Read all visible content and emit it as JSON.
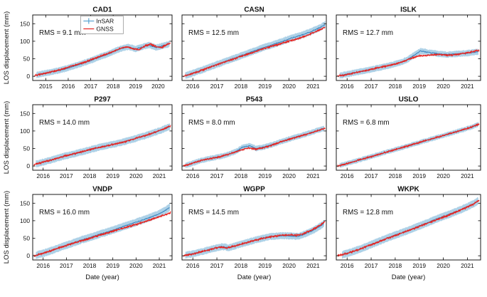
{
  "figure": {
    "ylabel": "LOS displacement (mm)",
    "xlabel": "Date (year)",
    "legend": {
      "insar": "InSAR",
      "gnss": "GNSS"
    },
    "legend_position": "top of first subplot",
    "grid": false,
    "colors": {
      "gnss": "#e8231f",
      "insar_band": "#5ba3d0",
      "insar_core": "#2173b5",
      "axis": "#000000"
    },
    "ylim": [
      -12,
      175
    ],
    "yticks": [
      0,
      50,
      100,
      150
    ]
  },
  "chart_data": [
    {
      "type": "line",
      "title": "CAD1",
      "rms_label": "RMS = 9.1 mm",
      "xlim": [
        2014.42,
        2020.62
      ],
      "xticks": [
        2015,
        2016,
        2017,
        2018,
        2019,
        2020
      ],
      "gnss": {
        "x": [
          2014.5,
          2014.8,
          2015.2,
          2015.6,
          2016.0,
          2016.4,
          2016.8,
          2017.2,
          2017.6,
          2018.0,
          2018.3,
          2018.6,
          2018.9,
          2019.15,
          2019.4,
          2019.65,
          2019.9,
          2020.15,
          2020.4,
          2020.55
        ],
        "y": [
          2,
          6,
          12,
          18,
          26,
          33,
          42,
          52,
          61,
          71,
          79,
          84,
          79,
          76,
          86,
          92,
          85,
          82,
          91,
          95
        ]
      },
      "insar": {
        "x": [
          2014.6,
          2015.0,
          2015.4,
          2015.8,
          2016.2,
          2016.6,
          2017.0,
          2017.4,
          2017.8,
          2018.1,
          2018.4,
          2018.7,
          2019.0,
          2019.3,
          2019.6,
          2019.9,
          2020.2,
          2020.5
        ],
        "y": [
          4,
          9,
          14,
          20,
          28,
          36,
          45,
          55,
          64,
          73,
          80,
          84,
          78,
          84,
          89,
          82,
          87,
          92
        ],
        "err": 8
      },
      "noise": 3.0
    },
    {
      "type": "line",
      "title": "CASN",
      "rms_label": "RMS = 12.5 mm",
      "xlim": [
        2015.55,
        2021.55
      ],
      "xticks": [
        2016,
        2017,
        2018,
        2019,
        2020,
        2021
      ],
      "gnss": {
        "x": [
          2015.6,
          2016.0,
          2016.4,
          2016.8,
          2017.2,
          2017.6,
          2018.0,
          2018.4,
          2018.8,
          2019.2,
          2019.6,
          2020.0,
          2020.4,
          2020.8,
          2021.2,
          2021.5
        ],
        "y": [
          0,
          8,
          18,
          28,
          38,
          47,
          57,
          66,
          76,
          84,
          92,
          100,
          108,
          118,
          130,
          140
        ]
      },
      "insar": {
        "x": [
          2015.7,
          2016.1,
          2016.5,
          2016.9,
          2017.3,
          2017.7,
          2018.1,
          2018.5,
          2018.9,
          2019.3,
          2019.7,
          2020.1,
          2020.5,
          2020.9,
          2021.25,
          2021.5
        ],
        "y": [
          2,
          11,
          21,
          31,
          41,
          51,
          61,
          71,
          81,
          90,
          99,
          109,
          117,
          127,
          138,
          147
        ],
        "err": 9
      },
      "noise": 3.2
    },
    {
      "type": "line",
      "title": "ISLK",
      "rms_label": "RMS = 12.7 mm",
      "xlim": [
        2015.55,
        2021.55
      ],
      "xticks": [
        2016,
        2017,
        2018,
        2019,
        2020,
        2021
      ],
      "gnss": {
        "x": [
          2015.6,
          2016.0,
          2016.4,
          2016.8,
          2017.2,
          2017.6,
          2018.0,
          2018.4,
          2018.7,
          2019.0,
          2019.4,
          2019.8,
          2020.2,
          2020.6,
          2021.0,
          2021.5
        ],
        "y": [
          0,
          5,
          11,
          17,
          23,
          29,
          35,
          44,
          52,
          58,
          60,
          62,
          60,
          63,
          67,
          74
        ]
      },
      "insar": {
        "x": [
          2015.7,
          2016.1,
          2016.5,
          2016.9,
          2017.3,
          2017.7,
          2018.1,
          2018.5,
          2018.8,
          2019.05,
          2019.4,
          2019.8,
          2020.2,
          2020.6,
          2021.0,
          2021.45
        ],
        "y": [
          2,
          7,
          13,
          18,
          24,
          30,
          37,
          47,
          61,
          72,
          68,
          64,
          62,
          64,
          66,
          70
        ],
        "err": 8
      },
      "noise": 3.0
    },
    {
      "type": "line",
      "title": "P297",
      "rms_label": "RMS = 14.0 mm",
      "xlim": [
        2015.55,
        2021.55
      ],
      "xticks": [
        2016,
        2017,
        2018,
        2019,
        2020,
        2021
      ],
      "gnss": {
        "x": [
          2015.6,
          2016.0,
          2016.4,
          2016.8,
          2017.2,
          2017.6,
          2018.0,
          2018.4,
          2018.8,
          2019.2,
          2019.6,
          2020.0,
          2020.4,
          2020.8,
          2021.2,
          2021.5
        ],
        "y": [
          4,
          11,
          18,
          26,
          33,
          40,
          47,
          53,
          58,
          64,
          71,
          79,
          87,
          96,
          106,
          115
        ]
      },
      "insar": {
        "x": [
          2015.7,
          2016.1,
          2016.5,
          2016.9,
          2017.3,
          2017.7,
          2018.1,
          2018.5,
          2018.9,
          2019.3,
          2019.7,
          2020.1,
          2020.5,
          2020.9,
          2021.25,
          2021.45
        ],
        "y": [
          6,
          13,
          20,
          28,
          34,
          41,
          48,
          55,
          60,
          66,
          73,
          81,
          89,
          98,
          107,
          112
        ],
        "err": 9
      },
      "noise": 3.1
    },
    {
      "type": "line",
      "title": "P543",
      "rms_label": "RMS = 8.0 mm",
      "xlim": [
        2015.55,
        2021.55
      ],
      "xticks": [
        2016,
        2017,
        2018,
        2019,
        2020,
        2021
      ],
      "gnss": {
        "x": [
          2015.6,
          2015.9,
          2016.2,
          2016.5,
          2016.8,
          2017.1,
          2017.4,
          2017.7,
          2018.0,
          2018.3,
          2018.6,
          2019.0,
          2019.3,
          2019.6,
          2020.0,
          2020.4,
          2020.8,
          2021.2,
          2021.5
        ],
        "y": [
          0,
          6,
          13,
          18,
          22,
          26,
          32,
          38,
          46,
          52,
          48,
          53,
          60,
          68,
          76,
          84,
          92,
          101,
          108
        ]
      },
      "insar": {
        "x": [
          2015.7,
          2016.0,
          2016.3,
          2016.6,
          2016.9,
          2017.2,
          2017.5,
          2017.8,
          2018.05,
          2018.35,
          2018.65,
          2019.0,
          2019.35,
          2019.7,
          2020.05,
          2020.45,
          2020.85,
          2021.2,
          2021.45
        ],
        "y": [
          2,
          8,
          15,
          20,
          24,
          28,
          34,
          42,
          53,
          58,
          50,
          55,
          62,
          70,
          78,
          86,
          94,
          102,
          107
        ],
        "err": 7
      },
      "noise": 2.8
    },
    {
      "type": "line",
      "title": "USLO",
      "rms_label": "RMS = 6.8 mm",
      "xlim": [
        2015.55,
        2021.55
      ],
      "xticks": [
        2016,
        2017,
        2018,
        2019,
        2020,
        2021
      ],
      "gnss": {
        "x": [
          2015.6,
          2016.0,
          2016.4,
          2016.8,
          2017.2,
          2017.6,
          2018.0,
          2018.4,
          2018.8,
          2019.2,
          2019.6,
          2020.0,
          2020.4,
          2020.8,
          2021.2,
          2021.5
        ],
        "y": [
          0,
          7,
          15,
          23,
          31,
          39,
          47,
          55,
          63,
          71,
          79,
          87,
          95,
          103,
          112,
          120
        ]
      },
      "insar": {
        "x": [
          2015.7,
          2016.1,
          2016.5,
          2016.9,
          2017.3,
          2017.7,
          2018.1,
          2018.5,
          2018.9,
          2019.3,
          2019.7,
          2020.1,
          2020.5,
          2020.9,
          2021.25,
          2021.45
        ],
        "y": [
          2,
          9,
          17,
          25,
          33,
          41,
          49,
          57,
          65,
          73,
          81,
          89,
          97,
          105,
          113,
          119
        ],
        "err": 6
      },
      "noise": 2.7
    },
    {
      "type": "line",
      "title": "VNDP",
      "rms_label": "RMS = 16.0 mm",
      "xlim": [
        2015.55,
        2021.55
      ],
      "xticks": [
        2016,
        2017,
        2018,
        2019,
        2020,
        2021
      ],
      "gnss": {
        "x": [
          2015.6,
          2016.0,
          2016.4,
          2016.8,
          2017.2,
          2017.6,
          2018.0,
          2018.4,
          2018.8,
          2019.2,
          2019.6,
          2020.0,
          2020.4,
          2020.8,
          2021.2,
          2021.5
        ],
        "y": [
          0,
          7,
          16,
          25,
          34,
          42,
          50,
          58,
          66,
          74,
          82,
          90,
          98,
          107,
          116,
          123
        ]
      },
      "insar": {
        "x": [
          2015.7,
          2016.1,
          2016.5,
          2016.9,
          2017.3,
          2017.7,
          2018.1,
          2018.5,
          2018.9,
          2019.3,
          2019.7,
          2020.1,
          2020.5,
          2020.9,
          2021.25,
          2021.45
        ],
        "y": [
          2,
          9,
          18,
          28,
          37,
          46,
          54,
          63,
          71,
          80,
          89,
          98,
          107,
          117,
          129,
          138
        ],
        "err": 10
      },
      "noise": 3.4
    },
    {
      "type": "line",
      "title": "WGPP",
      "rms_label": "RMS = 14.5 mm",
      "xlim": [
        2015.55,
        2021.55
      ],
      "xticks": [
        2016,
        2017,
        2018,
        2019,
        2020,
        2021
      ],
      "gnss": {
        "x": [
          2015.6,
          2016.0,
          2016.4,
          2016.8,
          2017.1,
          2017.4,
          2017.7,
          2018.0,
          2018.4,
          2018.8,
          2019.2,
          2019.6,
          2020.0,
          2020.3,
          2020.6,
          2021.0,
          2021.3,
          2021.5
        ],
        "y": [
          0,
          5,
          12,
          19,
          25,
          22,
          27,
          33,
          41,
          48,
          54,
          58,
          60,
          58,
          63,
          75,
          88,
          98
        ]
      },
      "insar": {
        "x": [
          2015.7,
          2016.1,
          2016.5,
          2016.9,
          2017.2,
          2017.5,
          2017.8,
          2018.1,
          2018.5,
          2018.9,
          2019.25,
          2019.6,
          2020.0,
          2020.35,
          2020.65,
          2021.0,
          2021.3,
          2021.45
        ],
        "y": [
          2,
          7,
          14,
          21,
          26,
          23,
          29,
          35,
          43,
          50,
          55,
          57,
          57,
          55,
          62,
          72,
          85,
          92
        ],
        "err": 9
      },
      "noise": 3.2
    },
    {
      "type": "line",
      "title": "WKPK",
      "rms_label": "RMS = 12.8 mm",
      "xlim": [
        2015.55,
        2021.55
      ],
      "xticks": [
        2016,
        2017,
        2018,
        2019,
        2020,
        2021
      ],
      "gnss": {
        "x": [
          2015.6,
          2016.0,
          2016.4,
          2016.8,
          2017.2,
          2017.6,
          2018.0,
          2018.4,
          2018.8,
          2019.2,
          2019.6,
          2020.0,
          2020.4,
          2020.8,
          2021.2,
          2021.5
        ],
        "y": [
          0,
          7,
          16,
          26,
          37,
          48,
          58,
          68,
          78,
          89,
          100,
          110,
          121,
          133,
          146,
          158
        ]
      },
      "insar": {
        "x": [
          2015.8,
          2016.2,
          2016.6,
          2017.0,
          2017.4,
          2017.8,
          2018.2,
          2018.6,
          2019.0,
          2019.4,
          2019.8,
          2020.2,
          2020.6,
          2021.0,
          2021.3,
          2021.45
        ],
        "y": [
          3,
          11,
          21,
          32,
          43,
          54,
          64,
          74,
          85,
          96,
          107,
          117,
          128,
          140,
          150,
          157
        ],
        "err": 10
      },
      "noise": 3.3
    }
  ]
}
